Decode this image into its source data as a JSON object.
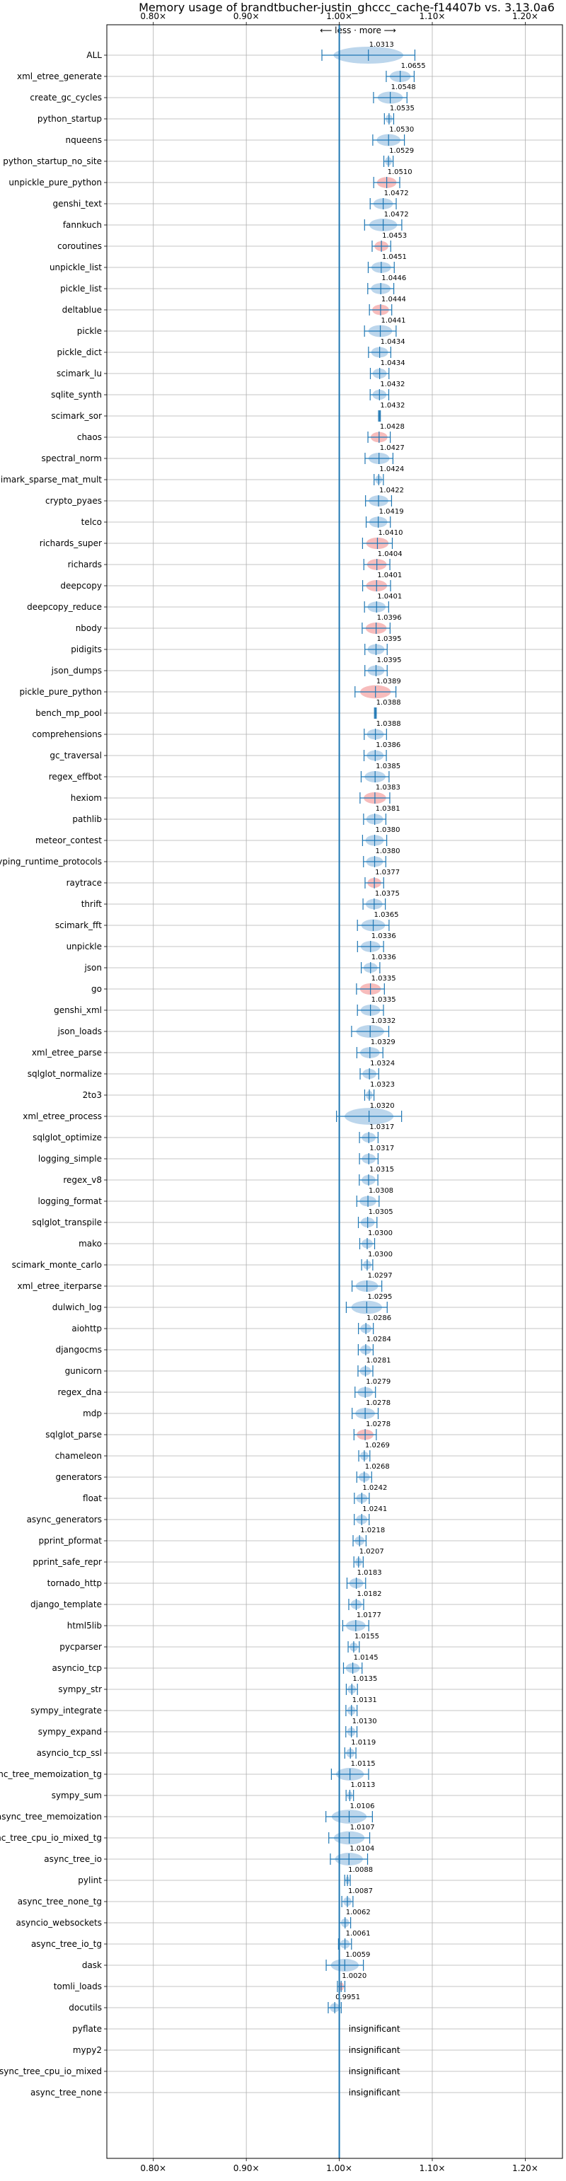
{
  "chart_data": {
    "type": "violin",
    "title": "Memory usage of brandtbucher-justin_ghccc_cache-f14407b vs. 3.13.0a6",
    "direction_label": "⟵ less · more ⟶",
    "x_ticks": [
      "0.80×",
      "0.90×",
      "1.00×",
      "1.10×",
      "1.20×"
    ],
    "x_tick_values": [
      0.8,
      0.9,
      1.0,
      1.1,
      1.2
    ],
    "xlim": [
      0.75,
      1.24
    ],
    "grid": true,
    "colors": {
      "normal": "#1f77b4",
      "regression": "#d62728",
      "fill_blue": "#a6c8e6",
      "fill_red": "#f4a6a6"
    },
    "insignificant_label": "insignificant",
    "benchmarks": [
      {
        "name": "ALL",
        "value": 1.0313,
        "label": "1.0313",
        "spread": 0.05,
        "regress": false
      },
      {
        "name": "xml_etree_generate",
        "value": 1.0655,
        "label": "1.0655",
        "spread": 0.015,
        "regress": false
      },
      {
        "name": "create_gc_cycles",
        "value": 1.0548,
        "label": "1.0548",
        "spread": 0.018,
        "regress": false
      },
      {
        "name": "python_startup",
        "value": 1.0535,
        "label": "1.0535",
        "spread": 0.005,
        "regress": false
      },
      {
        "name": "nqueens",
        "value": 1.053,
        "label": "1.0530",
        "spread": 0.017,
        "regress": false
      },
      {
        "name": "python_startup_no_site",
        "value": 1.0529,
        "label": "1.0529",
        "spread": 0.005,
        "regress": false
      },
      {
        "name": "unpickle_pure_python",
        "value": 1.051,
        "label": "1.0510",
        "spread": 0.014,
        "regress": true
      },
      {
        "name": "genshi_text",
        "value": 1.0472,
        "label": "1.0472",
        "spread": 0.014,
        "regress": false
      },
      {
        "name": "fannkuch",
        "value": 1.0472,
        "label": "1.0472",
        "spread": 0.02,
        "regress": false
      },
      {
        "name": "coroutines",
        "value": 1.0453,
        "label": "1.0453",
        "spread": 0.01,
        "regress": true
      },
      {
        "name": "unpickle_list",
        "value": 1.0451,
        "label": "1.0451",
        "spread": 0.014,
        "regress": false
      },
      {
        "name": "pickle_list",
        "value": 1.0446,
        "label": "1.0446",
        "spread": 0.014,
        "regress": false
      },
      {
        "name": "deltablue",
        "value": 1.0444,
        "label": "1.0444",
        "spread": 0.012,
        "regress": true
      },
      {
        "name": "pickle",
        "value": 1.0441,
        "label": "1.0441",
        "spread": 0.017,
        "regress": false
      },
      {
        "name": "pickle_dict",
        "value": 1.0434,
        "label": "1.0434",
        "spread": 0.012,
        "regress": false
      },
      {
        "name": "scimark_lu",
        "value": 1.0434,
        "label": "1.0434",
        "spread": 0.01,
        "regress": false
      },
      {
        "name": "sqlite_synth",
        "value": 1.0432,
        "label": "1.0432",
        "spread": 0.01,
        "regress": false
      },
      {
        "name": "scimark_sor",
        "value": 1.0432,
        "label": "1.0432",
        "spread": 0.001,
        "regress": false
      },
      {
        "name": "chaos",
        "value": 1.0428,
        "label": "1.0428",
        "spread": 0.012,
        "regress": true
      },
      {
        "name": "spectral_norm",
        "value": 1.0427,
        "label": "1.0427",
        "spread": 0.015,
        "regress": false
      },
      {
        "name": "scimark_sparse_mat_mult",
        "value": 1.0424,
        "label": "1.0424",
        "spread": 0.005,
        "regress": false
      },
      {
        "name": "crypto_pyaes",
        "value": 1.0422,
        "label": "1.0422",
        "spread": 0.014,
        "regress": false
      },
      {
        "name": "telco",
        "value": 1.0419,
        "label": "1.0419",
        "spread": 0.013,
        "regress": false
      },
      {
        "name": "richards_super",
        "value": 1.041,
        "label": "1.0410",
        "spread": 0.016,
        "regress": true
      },
      {
        "name": "richards",
        "value": 1.0404,
        "label": "1.0404",
        "spread": 0.014,
        "regress": true
      },
      {
        "name": "deepcopy",
        "value": 1.0401,
        "label": "1.0401",
        "spread": 0.015,
        "regress": true
      },
      {
        "name": "deepcopy_reduce",
        "value": 1.0401,
        "label": "1.0401",
        "spread": 0.013,
        "regress": false
      },
      {
        "name": "nbody",
        "value": 1.0396,
        "label": "1.0396",
        "spread": 0.015,
        "regress": true
      },
      {
        "name": "pidigits",
        "value": 1.0395,
        "label": "1.0395",
        "spread": 0.012,
        "regress": false
      },
      {
        "name": "json_dumps",
        "value": 1.0395,
        "label": "1.0395",
        "spread": 0.012,
        "regress": false
      },
      {
        "name": "pickle_pure_python",
        "value": 1.0389,
        "label": "1.0389",
        "spread": 0.022,
        "regress": true
      },
      {
        "name": "bench_mp_pool",
        "value": 1.0388,
        "label": "1.0388",
        "spread": 0.001,
        "regress": false
      },
      {
        "name": "comprehensions",
        "value": 1.0388,
        "label": "1.0388",
        "spread": 0.012,
        "regress": false
      },
      {
        "name": "gc_traversal",
        "value": 1.0386,
        "label": "1.0386",
        "spread": 0.012,
        "regress": false
      },
      {
        "name": "regex_effbot",
        "value": 1.0385,
        "label": "1.0385",
        "spread": 0.015,
        "regress": false
      },
      {
        "name": "hexiom",
        "value": 1.0383,
        "label": "1.0383",
        "spread": 0.016,
        "regress": true
      },
      {
        "name": "pathlib",
        "value": 1.0381,
        "label": "1.0381",
        "spread": 0.012,
        "regress": false
      },
      {
        "name": "meteor_contest",
        "value": 1.038,
        "label": "1.0380",
        "spread": 0.013,
        "regress": false
      },
      {
        "name": "typing_runtime_protocols",
        "value": 1.038,
        "label": "1.0380",
        "spread": 0.012,
        "regress": false
      },
      {
        "name": "raytrace",
        "value": 1.0377,
        "label": "1.0377",
        "spread": 0.01,
        "regress": true
      },
      {
        "name": "thrift",
        "value": 1.0375,
        "label": "1.0375",
        "spread": 0.012,
        "regress": false
      },
      {
        "name": "scimark_fft",
        "value": 1.0365,
        "label": "1.0365",
        "spread": 0.017,
        "regress": false
      },
      {
        "name": "unpickle",
        "value": 1.0336,
        "label": "1.0336",
        "spread": 0.014,
        "regress": false
      },
      {
        "name": "json",
        "value": 1.0336,
        "label": "1.0336",
        "spread": 0.01,
        "regress": false
      },
      {
        "name": "go",
        "value": 1.0335,
        "label": "1.0335",
        "spread": 0.015,
        "regress": true
      },
      {
        "name": "genshi_xml",
        "value": 1.0335,
        "label": "1.0335",
        "spread": 0.014,
        "regress": false
      },
      {
        "name": "json_loads",
        "value": 1.0332,
        "label": "1.0332",
        "spread": 0.02,
        "regress": false
      },
      {
        "name": "xml_etree_parse",
        "value": 1.0329,
        "label": "1.0329",
        "spread": 0.014,
        "regress": false
      },
      {
        "name": "sqlglot_normalize",
        "value": 1.0324,
        "label": "1.0324",
        "spread": 0.01,
        "regress": false
      },
      {
        "name": "2to3",
        "value": 1.0323,
        "label": "1.0323",
        "spread": 0.005,
        "regress": false
      },
      {
        "name": "xml_etree_process",
        "value": 1.032,
        "label": "1.0320",
        "spread": 0.035,
        "regress": false
      },
      {
        "name": "sqlglot_optimize",
        "value": 1.0317,
        "label": "1.0317",
        "spread": 0.01,
        "regress": false
      },
      {
        "name": "logging_simple",
        "value": 1.0317,
        "label": "1.0317",
        "spread": 0.01,
        "regress": false
      },
      {
        "name": "regex_v8",
        "value": 1.0315,
        "label": "1.0315",
        "spread": 0.01,
        "regress": false
      },
      {
        "name": "logging_format",
        "value": 1.0308,
        "label": "1.0308",
        "spread": 0.012,
        "regress": false
      },
      {
        "name": "sqlglot_transpile",
        "value": 1.0305,
        "label": "1.0305",
        "spread": 0.01,
        "regress": false
      },
      {
        "name": "mako",
        "value": 1.03,
        "label": "1.0300",
        "spread": 0.008,
        "regress": false
      },
      {
        "name": "scimark_monte_carlo",
        "value": 1.03,
        "label": "1.0300",
        "spread": 0.006,
        "regress": false
      },
      {
        "name": "xml_etree_iterparse",
        "value": 1.0297,
        "label": "1.0297",
        "spread": 0.016,
        "regress": false
      },
      {
        "name": "dulwich_log",
        "value": 1.0295,
        "label": "1.0295",
        "spread": 0.022,
        "regress": false
      },
      {
        "name": "aiohttp",
        "value": 1.0286,
        "label": "1.0286",
        "spread": 0.008,
        "regress": false
      },
      {
        "name": "djangocms",
        "value": 1.0284,
        "label": "1.0284",
        "spread": 0.008,
        "regress": false
      },
      {
        "name": "gunicorn",
        "value": 1.0281,
        "label": "1.0281",
        "spread": 0.008,
        "regress": false
      },
      {
        "name": "regex_dna",
        "value": 1.0279,
        "label": "1.0279",
        "spread": 0.011,
        "regress": false
      },
      {
        "name": "mdp",
        "value": 1.0278,
        "label": "1.0278",
        "spread": 0.014,
        "regress": false
      },
      {
        "name": "sqlglot_parse",
        "value": 1.0278,
        "label": "1.0278",
        "spread": 0.012,
        "regress": true
      },
      {
        "name": "chameleon",
        "value": 1.0269,
        "label": "1.0269",
        "spread": 0.006,
        "regress": false
      },
      {
        "name": "generators",
        "value": 1.0268,
        "label": "1.0268",
        "spread": 0.008,
        "regress": false
      },
      {
        "name": "float",
        "value": 1.0242,
        "label": "1.0242",
        "spread": 0.008,
        "regress": false
      },
      {
        "name": "async_generators",
        "value": 1.0241,
        "label": "1.0241",
        "spread": 0.008,
        "regress": false
      },
      {
        "name": "pprint_pformat",
        "value": 1.0218,
        "label": "1.0218",
        "spread": 0.007,
        "regress": false
      },
      {
        "name": "pprint_safe_repr",
        "value": 1.0207,
        "label": "1.0207",
        "spread": 0.005,
        "regress": false
      },
      {
        "name": "tornado_http",
        "value": 1.0183,
        "label": "1.0183",
        "spread": 0.01,
        "regress": false
      },
      {
        "name": "django_template",
        "value": 1.0182,
        "label": "1.0182",
        "spread": 0.008,
        "regress": false
      },
      {
        "name": "html5lib",
        "value": 1.0177,
        "label": "1.0177",
        "spread": 0.014,
        "regress": false
      },
      {
        "name": "pycparser",
        "value": 1.0155,
        "label": "1.0155",
        "spread": 0.006,
        "regress": false
      },
      {
        "name": "asyncio_tcp",
        "value": 1.0145,
        "label": "1.0145",
        "spread": 0.01,
        "regress": false
      },
      {
        "name": "sympy_str",
        "value": 1.0135,
        "label": "1.0135",
        "spread": 0.006,
        "regress": false
      },
      {
        "name": "sympy_integrate",
        "value": 1.0131,
        "label": "1.0131",
        "spread": 0.006,
        "regress": false
      },
      {
        "name": "sympy_expand",
        "value": 1.013,
        "label": "1.0130",
        "spread": 0.006,
        "regress": false
      },
      {
        "name": "asyncio_tcp_ssl",
        "value": 1.0119,
        "label": "1.0119",
        "spread": 0.006,
        "regress": false
      },
      {
        "name": "async_tree_memoization_tg",
        "value": 1.0115,
        "label": "1.0115",
        "spread": 0.02,
        "regress": false
      },
      {
        "name": "sympy_sum",
        "value": 1.0113,
        "label": "1.0113",
        "spread": 0.004,
        "regress": false
      },
      {
        "name": "async_tree_memoization",
        "value": 1.0106,
        "label": "1.0106",
        "spread": 0.025,
        "regress": false
      },
      {
        "name": "async_tree_cpu_io_mixed_tg",
        "value": 1.0107,
        "label": "1.0107",
        "spread": 0.022,
        "regress": false
      },
      {
        "name": "async_tree_io",
        "value": 1.0104,
        "label": "1.0104",
        "spread": 0.02,
        "regress": false
      },
      {
        "name": "pylint",
        "value": 1.0088,
        "label": "1.0088",
        "spread": 0.003,
        "regress": false
      },
      {
        "name": "async_tree_none_tg",
        "value": 1.0087,
        "label": "1.0087",
        "spread": 0.006,
        "regress": false
      },
      {
        "name": "asyncio_websockets",
        "value": 1.0062,
        "label": "1.0062",
        "spread": 0.006,
        "regress": false
      },
      {
        "name": "async_tree_io_tg",
        "value": 1.0061,
        "label": "1.0061",
        "spread": 0.007,
        "regress": false
      },
      {
        "name": "dask",
        "value": 1.0059,
        "label": "1.0059",
        "spread": 0.02,
        "regress": false
      },
      {
        "name": "tomli_loads",
        "value": 1.002,
        "label": "1.0020",
        "spread": 0.004,
        "regress": true
      },
      {
        "name": "docutils",
        "value": 0.9951,
        "label": "0.9951",
        "spread": 0.007,
        "regress": false
      },
      {
        "name": "pyflate",
        "value": null,
        "label": "",
        "spread": 0,
        "regress": false
      },
      {
        "name": "mypy2",
        "value": null,
        "label": "",
        "spread": 0,
        "regress": false
      },
      {
        "name": "async_tree_cpu_io_mixed",
        "value": null,
        "label": "",
        "spread": 0,
        "regress": false
      },
      {
        "name": "async_tree_none",
        "value": null,
        "label": "",
        "spread": 0,
        "regress": false
      }
    ]
  }
}
